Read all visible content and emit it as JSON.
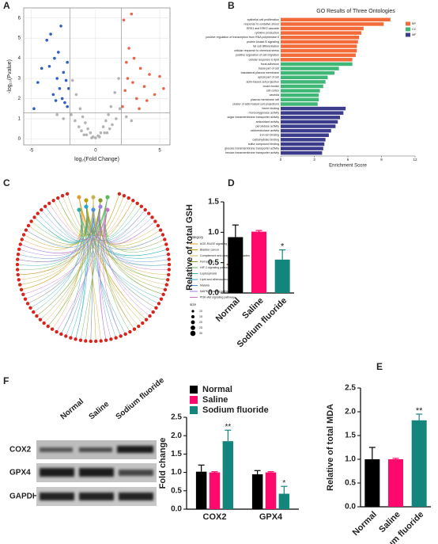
{
  "panels": [
    "A",
    "B",
    "C",
    "D",
    "E",
    "F"
  ],
  "blot": {
    "lanes": [
      "Normal",
      "Saline",
      "Sodium fluoride"
    ],
    "rows": [
      "COX2",
      "GPX4",
      "GAPDH"
    ]
  },
  "chart_data": [
    {
      "type": "scatter",
      "xlabel": "log₂(Fold Change)",
      "ylabel": "-log₁₀(Pvalue)",
      "xlim": [
        -5.6,
        5.8
      ],
      "ylim": [
        -0.3,
        6.5
      ],
      "xticks": [
        -5,
        0,
        5
      ],
      "yticks": [
        0,
        1,
        2,
        3,
        4,
        5,
        6
      ],
      "grid": true,
      "vlines": [
        -2,
        2
      ],
      "hlines": [
        1.3
      ],
      "series": [
        {
          "color": "#b3b3b3",
          "x": [
            -1.8,
            -1.5,
            -1.2,
            -1.0,
            -0.8,
            -0.6,
            -0.4,
            -0.2,
            0,
            0.2,
            0.4,
            0.6,
            0.8,
            1.0,
            1.2,
            1.5,
            1.8,
            -1.9,
            -1.3,
            -0.7,
            0.7,
            1.3,
            1.9,
            -1.6,
            1.6,
            -0.3,
            0.3,
            -1.1,
            1.1,
            -0.9,
            0.9,
            -2.5,
            2.4,
            -3,
            2.8
          ],
          "values": [
            2.9,
            2.2,
            1.5,
            1.1,
            0.8,
            0.5,
            0.3,
            0.1,
            0.05,
            0.15,
            0.3,
            0.6,
            0.9,
            1.2,
            1.6,
            2.3,
            3.0,
            1.2,
            0.6,
            0.2,
            0.3,
            0.7,
            1.5,
            0.9,
            1.0,
            0.05,
            0.1,
            0.4,
            0.5,
            0.2,
            0.3,
            1.0,
            1.1,
            1.2,
            0.9
          ]
        },
        {
          "color": "#2f5fc4",
          "x": [
            -4.8,
            -4.2,
            -3.8,
            -3.5,
            -3.2,
            -3.0,
            -2.8,
            -2.6,
            -2.4,
            -2.2,
            -2.1,
            -3.6,
            -2.9,
            -2.5,
            -2.3,
            -3.3,
            -4.5,
            -2.7,
            -2.2,
            -3.1
          ],
          "values": [
            1.5,
            3.5,
            4.9,
            5.2,
            4.0,
            3.0,
            2.5,
            2.0,
            1.8,
            1.6,
            2.5,
            3.6,
            4.3,
            3.3,
            2.9,
            2.2,
            2.8,
            5.6,
            3.8,
            1.9
          ]
        },
        {
          "color": "#e8674a",
          "x": [
            2.1,
            2.3,
            2.5,
            2.8,
            3.0,
            3.2,
            3.5,
            3.8,
            4.2,
            4.6,
            5.0,
            2.2,
            2.6,
            2.9,
            3.4,
            2.4,
            5.3,
            4.0
          ],
          "values": [
            1.6,
            2.4,
            3.0,
            6.2,
            4.0,
            2.0,
            3.5,
            2.6,
            3.2,
            2.2,
            3.1,
            5.9,
            4.5,
            2.8,
            1.5,
            3.8,
            2.5,
            1.9
          ]
        }
      ]
    },
    {
      "type": "barh",
      "title": "GO Results of Three Ontologies",
      "xlabel": "Enrichment Score",
      "xlim": [
        0,
        12
      ],
      "xticks": [
        0,
        3,
        6,
        9,
        12
      ],
      "series": [
        {
          "name": "BP",
          "color": "#f26b38",
          "categories": [
            "epithelial cell proliferation",
            "response to oxidative stress",
            "ERK1 and ERK2 cascade",
            "cytokine production",
            "positive regulation of transcription from RNA polymerase II",
            "protein kinase B signaling",
            "fat cell differentiation",
            "cellular response to chemical stress",
            "positive regulation of cell migration",
            "cellular response to lipid"
          ],
          "values": [
            9.8,
            9.2,
            7.4,
            7.2,
            7.0,
            6.9,
            6.8,
            6.8,
            6.7,
            6.4
          ]
        },
        {
          "name": "CC",
          "color": "#3fb877",
          "categories": [
            "focal adhesion",
            "basal part of cell",
            "basolateral plasma membrane",
            "apical part of cell",
            "actin-based cell projection",
            "brush border",
            "cell cortex",
            "caveola",
            "plasma membrane raft",
            "cluster of actin-based cell projections"
          ],
          "values": [
            6.4,
            5.2,
            4.8,
            4.2,
            4.0,
            3.8,
            3.5,
            3.4,
            3.4,
            3.3
          ]
        },
        {
          "name": "MF",
          "color": "#3c3c8c",
          "categories": [
            "heme binding",
            "monooxygenase activity",
            "sugar transmembrane transporter activity",
            "antioxidant activity",
            "peroxidase activity",
            "oxidoreductase activity",
            "iron ion binding",
            "carbohydrate binding",
            "sulfur compound binding",
            "glucose transmembrane transporter activity",
            "hexose transmembrane transporter activity"
          ],
          "values": [
            5.8,
            5.6,
            5.3,
            5.1,
            4.9,
            4.5,
            4.3,
            4.0,
            3.9,
            3.8,
            3.7
          ]
        }
      ]
    },
    {
      "type": "network",
      "legend_title": "category",
      "categories": [
        "AGE-RAGE signaling pathway",
        "Bladder cancer",
        "Complement and coagulation cascades",
        "Ferroptosis",
        "HIF-1 signaling pathway",
        "Leptospirosis",
        "Lipid and atherosclerosis",
        "Malaria",
        "MAPK signaling pathway",
        "PI3K-Akt signaling pathway"
      ],
      "colors": [
        "#e0a030",
        "#b8a000",
        "#c9b458",
        "#8a9a20",
        "#5cb85c",
        "#30b0a0",
        "#20a8c8",
        "#4c8fe0",
        "#9a7fe0",
        "#d070c0"
      ],
      "size_title": "size",
      "sizes": [
        10,
        15,
        20,
        25,
        30
      ]
    },
    {
      "type": "bar",
      "ylabel": "Relative  of total GSH",
      "categories": [
        "Normal",
        "Saline",
        "Sodium fluoride"
      ],
      "values": [
        0.92,
        1.01,
        0.55
      ],
      "errors": [
        0.2,
        0.02,
        0.16
      ],
      "colors": [
        "#000000",
        "#ff0a6c",
        "#14857c"
      ],
      "significance": [
        null,
        null,
        "*"
      ],
      "ylim": [
        0,
        1.5
      ],
      "yticks": [
        {
          "value": 0,
          "label": "0.0"
        },
        0.5,
        {
          "value": 1,
          "label": "1.0"
        },
        1.5
      ]
    },
    {
      "type": "bar",
      "ylabel": "Relative  of total MDA",
      "categories": [
        "Normal",
        "Saline",
        "Sodium fluoride"
      ],
      "values": [
        1.0,
        1.0,
        1.82
      ],
      "errors": [
        0.25,
        0.02,
        0.13
      ],
      "colors": [
        "#000000",
        "#ff0a6c",
        "#14857c"
      ],
      "significance": [
        null,
        null,
        "**"
      ],
      "ylim": [
        0,
        2.5
      ],
      "yticks": [
        {
          "value": 0,
          "label": "0.0"
        },
        0.5,
        {
          "value": 1,
          "label": "1.0"
        },
        1.5,
        {
          "value": 2,
          "label": "2.0"
        },
        2.5
      ]
    },
    {
      "type": "groupbar",
      "ylabel": "Fold change",
      "categories": [
        "COX2",
        "GPX4"
      ],
      "series": [
        {
          "name": "Normal",
          "color": "#000000",
          "values": [
            1.02,
            0.95
          ],
          "errors": [
            0.18,
            0.1
          ],
          "significance": [
            null,
            null
          ]
        },
        {
          "name": "Saline",
          "color": "#ff0a6c",
          "values": [
            1.0,
            1.0
          ],
          "errors": [
            0.02,
            0.02
          ],
          "significance": [
            null,
            null
          ]
        },
        {
          "name": "Sodium fluoride",
          "color": "#14857c",
          "values": [
            1.85,
            0.42
          ],
          "errors": [
            0.3,
            0.2
          ],
          "significance": [
            "**",
            "*"
          ]
        }
      ],
      "ylim": [
        0,
        2.5
      ],
      "yticks": [
        {
          "value": 0,
          "label": "0.0"
        },
        0.5,
        {
          "value": 1,
          "label": "1.0"
        },
        1.5,
        {
          "value": 2,
          "label": "2.0"
        },
        2.5
      ]
    }
  ]
}
